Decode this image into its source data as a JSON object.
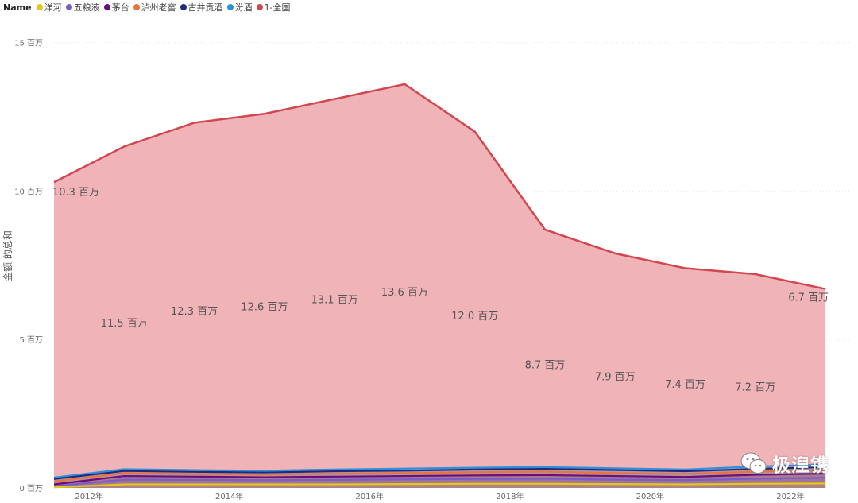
{
  "legend": {
    "title": "Name",
    "items": [
      {
        "label": "洋河",
        "color": "#E6C619"
      },
      {
        "label": "五粮液",
        "color": "#7B5CC4"
      },
      {
        "label": "茅台",
        "color": "#6A0F79"
      },
      {
        "label": "泸州老窖",
        "color": "#E8743B"
      },
      {
        "label": "古井贡酒",
        "color": "#1F2A7C"
      },
      {
        "label": "汾酒",
        "color": "#2E8FDB"
      },
      {
        "label": "1-全国",
        "color": "#D0474F"
      }
    ]
  },
  "watermark": {
    "text": "极湼镌"
  },
  "chart_data": {
    "type": "area",
    "ylabel": "金额 的总和",
    "xlabel": "",
    "x": [
      2011.5,
      2012.5,
      2013.5,
      2014.5,
      2015.5,
      2016.5,
      2017.5,
      2018.5,
      2019.5,
      2020.5,
      2021.5,
      2022.5
    ],
    "xlim": [
      2011.5,
      2022.85
    ],
    "xticks": [
      2012,
      2014,
      2016,
      2018,
      2020,
      2022
    ],
    "xtick_labels": [
      "2012年",
      "2014年",
      "2016年",
      "2018年",
      "2020年",
      "2022年"
    ],
    "ylim": [
      0,
      15.9
    ],
    "yticks": [
      0,
      5,
      10,
      15
    ],
    "ytick_labels": [
      "0 百万",
      "5 百万",
      "10 百万",
      "15 百万"
    ],
    "grid": true,
    "legend_position": "top-left",
    "series": [
      {
        "name": "1-全国",
        "color": "#D0474F",
        "fill": "#F0B3B7",
        "values": [
          10.3,
          11.5,
          12.3,
          12.6,
          13.1,
          13.6,
          12.0,
          8.7,
          7.9,
          7.4,
          7.2,
          6.7
        ],
        "data_labels": [
          "10.3 百万",
          "11.5 百万",
          "12.3 百万",
          "12.6 百万",
          "13.1 百万",
          "13.6 百万",
          "12.0 百万",
          "8.7 百万",
          "7.9 百万",
          "7.4 百万",
          "7.2 百万",
          "6.7 百万"
        ]
      },
      {
        "name": "汾酒",
        "color": "#2E8FDB",
        "values": [
          0.35,
          0.63,
          0.6,
          0.58,
          0.62,
          0.65,
          0.68,
          0.7,
          0.66,
          0.62,
          0.72,
          0.78
        ]
      },
      {
        "name": "古井贡酒",
        "color": "#1F2A7C",
        "values": [
          0.3,
          0.57,
          0.54,
          0.52,
          0.56,
          0.58,
          0.62,
          0.64,
          0.6,
          0.56,
          0.64,
          0.7
        ]
      },
      {
        "name": "泸州老窖",
        "color": "#E8743B",
        "values": [
          0.22,
          0.5,
          0.47,
          0.45,
          0.48,
          0.5,
          0.53,
          0.55,
          0.5,
          0.47,
          0.55,
          0.6
        ]
      },
      {
        "name": "茅台",
        "color": "#6A0F79",
        "values": [
          0.12,
          0.4,
          0.38,
          0.36,
          0.38,
          0.4,
          0.42,
          0.43,
          0.4,
          0.37,
          0.44,
          0.48
        ]
      },
      {
        "name": "五粮液",
        "color": "#7B5CC4",
        "values": [
          0.06,
          0.28,
          0.27,
          0.26,
          0.27,
          0.29,
          0.3,
          0.31,
          0.28,
          0.26,
          0.31,
          0.34
        ]
      },
      {
        "name": "洋河",
        "color": "#E6C619",
        "values": [
          0.02,
          0.12,
          0.12,
          0.12,
          0.12,
          0.13,
          0.14,
          0.14,
          0.13,
          0.12,
          0.14,
          0.15
        ]
      }
    ]
  }
}
